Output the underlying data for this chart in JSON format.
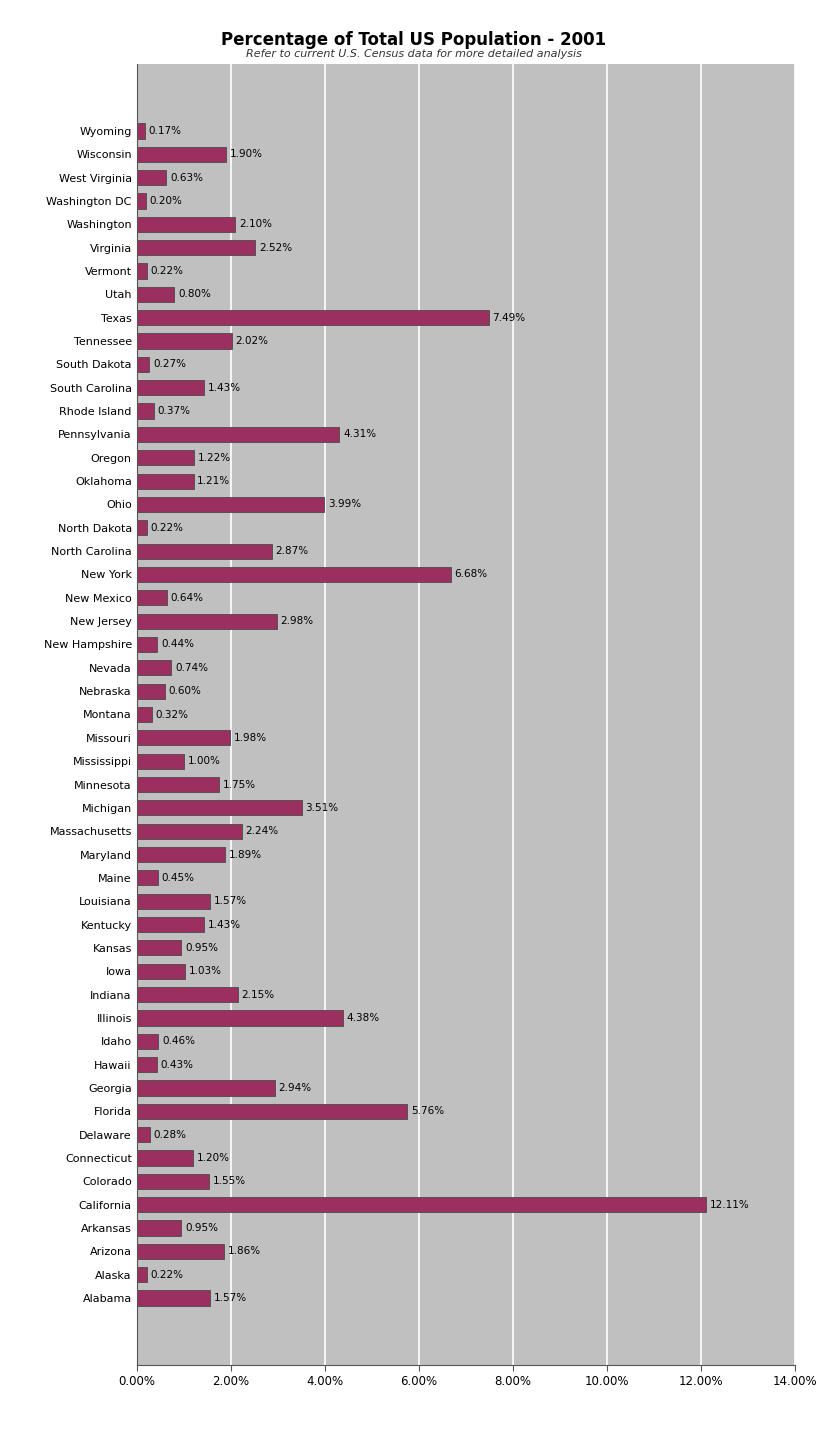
{
  "title": "Percentage of Total US Population - 2001",
  "subtitle": "Refer to current U.S. Census data for more detailed analysis",
  "states": [
    "Wyoming",
    "Wisconsin",
    "West Virginia",
    "Washington DC",
    "Washington",
    "Virginia",
    "Vermont",
    "Utah",
    "Texas",
    "Tennessee",
    "South Dakota",
    "South Carolina",
    "Rhode Island",
    "Pennsylvania",
    "Oregon",
    "Oklahoma",
    "Ohio",
    "North Dakota",
    "North Carolina",
    "New York",
    "New Mexico",
    "New Jersey",
    "New Hampshire",
    "Nevada",
    "Nebraska",
    "Montana",
    "Missouri",
    "Mississippi",
    "Minnesota",
    "Michigan",
    "Massachusetts",
    "Maryland",
    "Maine",
    "Louisiana",
    "Kentucky",
    "Kansas",
    "Iowa",
    "Indiana",
    "Illinois",
    "Idaho",
    "Hawaii",
    "Georgia",
    "Florida",
    "Delaware",
    "Connecticut",
    "Colorado",
    "California",
    "Arkansas",
    "Arizona",
    "Alaska",
    "Alabama"
  ],
  "values": [
    0.17,
    1.9,
    0.63,
    0.2,
    2.1,
    2.52,
    0.22,
    0.8,
    7.49,
    2.02,
    0.27,
    1.43,
    0.37,
    4.31,
    1.22,
    1.21,
    3.99,
    0.22,
    2.87,
    6.68,
    0.64,
    2.98,
    0.44,
    0.74,
    0.6,
    0.32,
    1.98,
    1.0,
    1.75,
    3.51,
    2.24,
    1.89,
    0.45,
    1.57,
    1.43,
    0.95,
    1.03,
    2.15,
    4.38,
    0.46,
    0.43,
    2.94,
    5.76,
    0.28,
    1.2,
    1.55,
    12.11,
    0.95,
    1.86,
    0.22,
    1.57
  ],
  "bar_color": "#9b3060",
  "figure_bg_color": "#ffffff",
  "plot_bg_color": "#c0c0c0",
  "grid_color": "#ffffff",
  "bar_edge_color": "#4a4a4a",
  "xlim": [
    0,
    14.0
  ],
  "xticks": [
    0,
    2,
    4,
    6,
    8,
    10,
    12,
    14
  ],
  "xtick_labels": [
    "0.00%",
    "2.00%",
    "4.00%",
    "6.00%",
    "8.00%",
    "10.00%",
    "12.00%",
    "14.00%"
  ],
  "title_fontsize": 12,
  "subtitle_fontsize": 8,
  "label_fontsize": 8,
  "value_fontsize": 7.5,
  "tick_fontsize": 8.5,
  "bar_height": 0.65
}
